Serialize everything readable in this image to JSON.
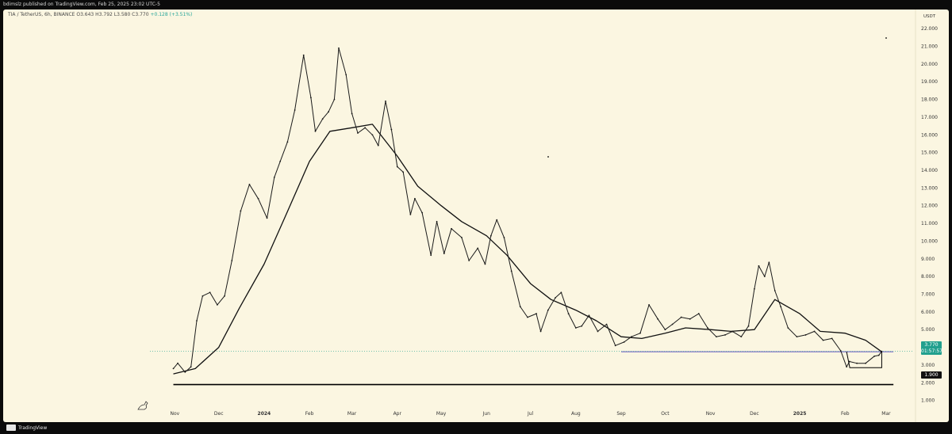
{
  "top_bar": {
    "publisher_text": "bdimslz published on TradingView.com, Feb 25, 2025 23:02 UTC-5"
  },
  "header": {
    "symbol": "TIA / TetherUS, 6h, BINANCE",
    "ohlc": "O3.643 H3.792 L3.580 C3.770",
    "change": "+0.128 (+3.51%)"
  },
  "price_axis": {
    "unit": "USDT"
  },
  "price_tag": {
    "value": "3.770",
    "countdown": "01:57:57"
  },
  "support_tag": {
    "value": "1.900"
  },
  "footer": {
    "brand": "TradingView"
  },
  "colors": {
    "background": "#fbf6e1",
    "price_line": "#1a1a1a",
    "moving_average": "#111111",
    "resistance_line": "#5b4bbf",
    "support_line": "#000000",
    "price_tag": "#22a08e"
  },
  "chart_data": {
    "type": "line",
    "title": "",
    "xlabel": "",
    "ylabel": "",
    "ylim": [
      0,
      22.9
    ],
    "y_ticks": [
      "1.000",
      "2.000",
      "3.000",
      "4.000",
      "5.000",
      "6.000",
      "7.000",
      "8.000",
      "9.000",
      "10.000",
      "11.000",
      "12.000",
      "13.000",
      "14.000",
      "15.000",
      "16.000",
      "17.000",
      "18.000",
      "19.000",
      "20.000",
      "21.000",
      "22.000"
    ],
    "x_ticks": [
      "Nov",
      "Dec",
      "2024",
      "Feb",
      "Mar",
      "Apr",
      "May",
      "Jun",
      "Jul",
      "Aug",
      "Sep",
      "Oct",
      "Nov",
      "Dec",
      "2025",
      "Feb",
      "Mar"
    ],
    "grid": false,
    "series": [
      {
        "x": [
          "2023-10-31",
          "2023-11-03",
          "2023-11-08",
          "2023-11-12",
          "2023-11-16",
          "2023-11-20",
          "2023-11-25",
          "2023-11-30",
          "2023-12-05",
          "2023-12-10",
          "2023-12-16",
          "2023-12-22",
          "2023-12-28",
          "2024-01-03",
          "2024-01-08",
          "2024-01-12",
          "2024-01-17",
          "2024-01-22",
          "2024-01-28",
          "2024-02-02",
          "2024-02-05",
          "2024-02-10",
          "2024-02-14",
          "2024-02-18",
          "2024-02-21",
          "2024-02-26",
          "2024-03-01",
          "2024-03-05",
          "2024-03-10",
          "2024-03-15",
          "2024-03-19",
          "2024-03-24",
          "2024-03-28",
          "2024-04-01",
          "2024-04-05",
          "2024-04-10",
          "2024-04-13",
          "2024-04-18",
          "2024-04-24",
          "2024-04-28",
          "2024-05-03",
          "2024-05-08",
          "2024-05-15",
          "2024-05-20",
          "2024-05-26",
          "2024-05-31",
          "2024-06-04",
          "2024-06-08",
          "2024-06-13",
          "2024-06-18",
          "2024-06-24",
          "2024-06-29",
          "2024-07-05",
          "2024-07-08",
          "2024-07-13",
          "2024-07-18",
          "2024-07-22",
          "2024-07-27",
          "2024-08-01",
          "2024-08-05",
          "2024-08-10",
          "2024-08-16",
          "2024-08-22",
          "2024-08-28",
          "2024-09-03",
          "2024-09-08",
          "2024-09-14",
          "2024-09-20",
          "2024-09-26",
          "2024-10-01",
          "2024-10-06",
          "2024-10-12",
          "2024-10-18",
          "2024-10-24",
          "2024-10-30",
          "2024-11-05",
          "2024-11-11",
          "2024-11-16",
          "2024-11-22",
          "2024-11-27",
          "2024-12-01",
          "2024-12-04",
          "2024-12-08",
          "2024-12-11",
          "2024-12-15",
          "2024-12-19",
          "2024-12-24",
          "2024-12-30",
          "2025-01-05",
          "2025-01-11",
          "2025-01-17",
          "2025-01-23",
          "2025-01-29",
          "2025-02-02",
          "2025-02-04",
          "2025-02-09",
          "2025-02-15",
          "2025-02-21",
          "2025-02-24",
          "2025-02-26"
        ],
        "values": [
          2.8,
          3.1,
          2.6,
          2.9,
          5.5,
          6.9,
          7.1,
          6.4,
          6.9,
          8.9,
          11.7,
          13.2,
          12.4,
          11.3,
          13.6,
          14.5,
          15.6,
          17.4,
          20.5,
          18.1,
          16.2,
          16.9,
          17.3,
          18.0,
          20.9,
          19.4,
          17.2,
          16.1,
          16.4,
          16.0,
          15.4,
          17.9,
          16.3,
          14.2,
          13.9,
          11.5,
          12.4,
          11.6,
          9.2,
          11.1,
          9.3,
          10.7,
          10.2,
          8.9,
          9.6,
          8.7,
          10.3,
          11.2,
          10.2,
          8.3,
          6.3,
          5.7,
          5.9,
          4.9,
          6.1,
          6.8,
          7.1,
          5.9,
          5.1,
          5.2,
          5.8,
          4.9,
          5.3,
          4.1,
          4.3,
          4.6,
          4.8,
          6.4,
          5.6,
          5.0,
          5.3,
          5.7,
          5.6,
          5.9,
          5.1,
          4.6,
          4.7,
          4.9,
          4.6,
          5.2,
          7.3,
          8.6,
          8.0,
          8.8,
          7.2,
          6.3,
          5.1,
          4.6,
          4.7,
          4.9,
          4.4,
          4.5,
          3.8,
          2.9,
          3.2,
          3.1,
          3.1,
          3.5,
          3.55,
          3.77
        ],
        "markers": [
          [
            3.1,
            2.6
          ]
        ]
      },
      {
        "x": [
          "2023-10-31",
          "2023-11-15",
          "2023-12-01",
          "2023-12-15",
          "2024-01-01",
          "2024-01-15",
          "2024-02-01",
          "2024-02-15",
          "2024-03-01",
          "2024-03-15",
          "2024-04-01",
          "2024-04-15",
          "2024-05-01",
          "2024-05-15",
          "2024-06-01",
          "2024-06-15",
          "2024-07-01",
          "2024-07-15",
          "2024-08-01",
          "2024-08-15",
          "2024-09-01",
          "2024-09-15",
          "2024-10-01",
          "2024-10-15",
          "2024-11-01",
          "2024-11-15",
          "2024-12-01",
          "2024-12-15",
          "2025-01-01",
          "2025-01-15",
          "2025-02-01",
          "2025-02-15",
          "2025-02-26"
        ],
        "values": [
          2.5,
          2.8,
          4.0,
          6.2,
          8.7,
          11.3,
          14.5,
          16.2,
          16.4,
          16.6,
          14.8,
          13.1,
          12.0,
          11.1,
          10.3,
          9.2,
          7.6,
          6.7,
          6.1,
          5.5,
          4.6,
          4.5,
          4.8,
          5.1,
          5.0,
          4.9,
          5.0,
          6.7,
          5.9,
          4.9,
          4.8,
          4.4,
          3.75
        ]
      }
    ],
    "horizontal_lines": [
      {
        "value": 3.75,
        "from": "2024-09-01",
        "to": "2025-03-06"
      },
      {
        "value": 1.9,
        "from": "2023-10-31",
        "to": "2025-03-06"
      }
    ],
    "annotations": [
      {
        "type": "bracket",
        "from": "2025-02-02",
        "to": "2025-02-26",
        "low": 2.85,
        "high": 3.75
      }
    ]
  }
}
